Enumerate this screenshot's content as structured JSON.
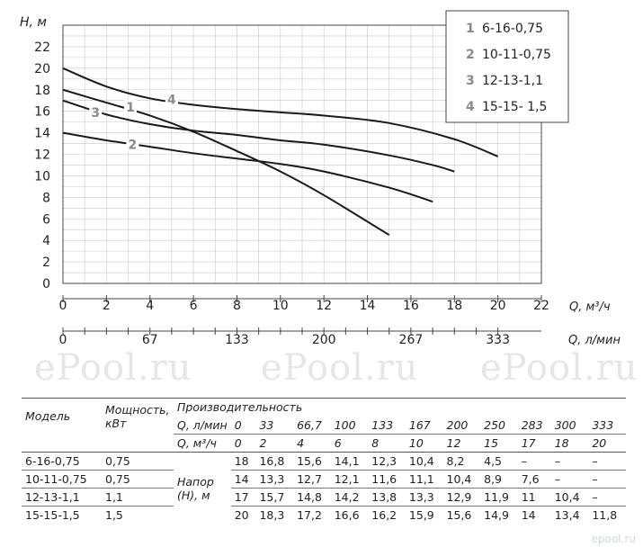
{
  "chart_data": {
    "type": "line",
    "ylabel": "H, м",
    "xlabel": "Q, м³/ч",
    "xlabel2": "Q, л/мин",
    "xlim": [
      0,
      22
    ],
    "ylim": [
      0,
      24
    ],
    "xticks": [
      "0",
      "2",
      "4",
      "6",
      "8",
      "10",
      "12",
      "14",
      "16",
      "18",
      "20",
      "22"
    ],
    "yticks": [
      "0",
      "2",
      "4",
      "6",
      "8",
      "10",
      "12",
      "14",
      "16",
      "18",
      "20",
      "22"
    ],
    "x2ticks": [
      {
        "pos": 0,
        "label": "0"
      },
      {
        "pos": 4,
        "label": "67"
      },
      {
        "pos": 8,
        "label": "133"
      },
      {
        "pos": 12,
        "label": "200"
      },
      {
        "pos": 16,
        "label": "267"
      },
      {
        "pos": 20,
        "label": "333"
      }
    ],
    "grid": true,
    "legend_position": "top-right",
    "series": [
      {
        "id": "1",
        "name": "6-16-0,75",
        "x": [
          0,
          2,
          4,
          6,
          8,
          10,
          12,
          15
        ],
        "y": [
          18,
          16.8,
          15.6,
          14.1,
          12.3,
          10.4,
          8.2,
          4.5
        ],
        "tag_at": [
          3.1,
          16.4
        ]
      },
      {
        "id": "2",
        "name": "10-11-0,75",
        "x": [
          0,
          2,
          4,
          6,
          8,
          10,
          12,
          15,
          17
        ],
        "y": [
          14,
          13.3,
          12.7,
          12.1,
          11.6,
          11.1,
          10.4,
          8.9,
          7.6
        ],
        "tag_at": [
          3.2,
          12.9
        ]
      },
      {
        "id": "3",
        "name": "12-13-1,1",
        "x": [
          0,
          2,
          4,
          6,
          8,
          10,
          12,
          15,
          17,
          18
        ],
        "y": [
          17,
          15.7,
          14.8,
          14.2,
          13.8,
          13.3,
          12.9,
          11.9,
          11,
          10.4
        ],
        "tag_at": [
          1.5,
          15.9
        ]
      },
      {
        "id": "4",
        "name": "15-15- 1,5",
        "x": [
          0,
          2,
          4,
          6,
          8,
          10,
          12,
          15,
          18,
          20
        ],
        "y": [
          20,
          18.3,
          17.2,
          16.6,
          16.2,
          15.9,
          15.6,
          14.9,
          13.4,
          11.8
        ],
        "tag_at": [
          5,
          17.1
        ]
      }
    ]
  },
  "watermark": {
    "text": "ePool.ru",
    "corner": "epool.ru"
  },
  "table": {
    "h_model": "Модель",
    "h_power": "Мощность, кВт",
    "h_perf": "Производительность",
    "h_q_lpm": "Q, л/мин",
    "h_q_m3h": "Q, м³/ч",
    "h_head": "Напор (Н), м",
    "q_lpm": [
      "0",
      "33",
      "66,7",
      "100",
      "133",
      "167",
      "200",
      "250",
      "283",
      "300",
      "333"
    ],
    "q_m3h": [
      "0",
      "2",
      "4",
      "6",
      "8",
      "10",
      "12",
      "15",
      "17",
      "18",
      "20"
    ],
    "rows": [
      {
        "model": "6-16-0,75",
        "power": "0,75",
        "values": [
          "18",
          "16,8",
          "15,6",
          "14,1",
          "12,3",
          "10,4",
          "8,2",
          "4,5",
          "–",
          "–",
          "–"
        ]
      },
      {
        "model": "10-11-0,75",
        "power": "0,75",
        "values": [
          "14",
          "13,3",
          "12,7",
          "12,1",
          "11,6",
          "11,1",
          "10,4",
          "8,9",
          "7,6",
          "–",
          "–"
        ]
      },
      {
        "model": "12-13-1,1",
        "power": "1,1",
        "values": [
          "17",
          "15,7",
          "14,8",
          "14,2",
          "13,8",
          "13,3",
          "12,9",
          "11,9",
          "11",
          "10,4",
          "–"
        ]
      },
      {
        "model": "15-15-1,5",
        "power": "1,5",
        "values": [
          "20",
          "18,3",
          "17,2",
          "16,6",
          "16,2",
          "15,9",
          "15,6",
          "14,9",
          "14",
          "13,4",
          "11,8"
        ]
      }
    ]
  }
}
